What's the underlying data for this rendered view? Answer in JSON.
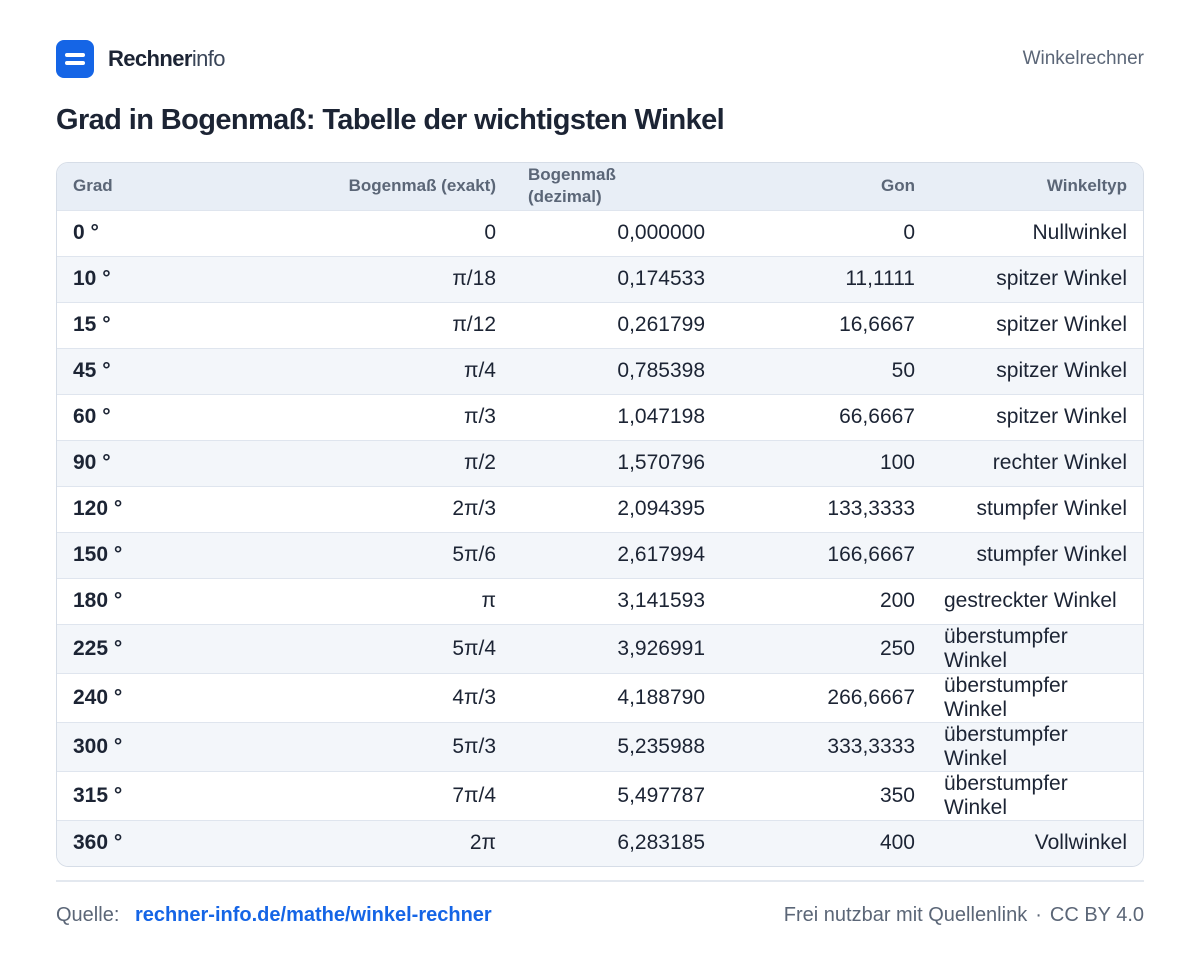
{
  "header": {
    "brand_strong": "Rechner",
    "brand_light": "info",
    "section": "Winkelrechner"
  },
  "title": "Grad in Bogenmaß: Tabelle der wichtigsten Winkel",
  "table": {
    "headers": {
      "grad": "Grad",
      "exakt": "Bogenmaß (exakt)",
      "dezimal_line1": "Bogenmaß",
      "dezimal_line2": "(dezimal)",
      "gon": "Gon",
      "typ": "Winkeltyp"
    },
    "rows": [
      {
        "grad": "0 °",
        "exakt": "0",
        "dezimal": "0,000000",
        "gon": "0",
        "typ": "Nullwinkel"
      },
      {
        "grad": "10 °",
        "exakt": "π/18",
        "dezimal": "0,174533",
        "gon": "11,1111",
        "typ": "spitzer Winkel"
      },
      {
        "grad": "15 °",
        "exakt": "π/12",
        "dezimal": "0,261799",
        "gon": "16,6667",
        "typ": "spitzer Winkel"
      },
      {
        "grad": "45 °",
        "exakt": "π/4",
        "dezimal": "0,785398",
        "gon": "50",
        "typ": "spitzer Winkel"
      },
      {
        "grad": "60 °",
        "exakt": "π/3",
        "dezimal": "1,047198",
        "gon": "66,6667",
        "typ": "spitzer Winkel"
      },
      {
        "grad": "90 °",
        "exakt": "π/2",
        "dezimal": "1,570796",
        "gon": "100",
        "typ": "rechter Winkel"
      },
      {
        "grad": "120 °",
        "exakt": "2π/3",
        "dezimal": "2,094395",
        "gon": "133,3333",
        "typ": "stumpfer Winkel"
      },
      {
        "grad": "150 °",
        "exakt": "5π/6",
        "dezimal": "2,617994",
        "gon": "166,6667",
        "typ": "stumpfer Winkel"
      },
      {
        "grad": "180 °",
        "exakt": "π",
        "dezimal": "3,141593",
        "gon": "200",
        "typ": "gestreckter Winkel"
      },
      {
        "grad": "225 °",
        "exakt": "5π/4",
        "dezimal": "3,926991",
        "gon": "250",
        "typ": "überstumpfer Winkel"
      },
      {
        "grad": "240 °",
        "exakt": "4π/3",
        "dezimal": "4,188790",
        "gon": "266,6667",
        "typ": "überstumpfer Winkel"
      },
      {
        "grad": "300 °",
        "exakt": "5π/3",
        "dezimal": "5,235988",
        "gon": "333,3333",
        "typ": "überstumpfer Winkel"
      },
      {
        "grad": "315 °",
        "exakt": "7π/4",
        "dezimal": "5,497787",
        "gon": "350",
        "typ": "überstumpfer Winkel"
      },
      {
        "grad": "360 °",
        "exakt": "2π",
        "dezimal": "6,283185",
        "gon": "400",
        "typ": "Vollwinkel"
      }
    ]
  },
  "footer": {
    "source_label": "Quelle:",
    "source_link": "rechner-info.de/mathe/winkel-rechner",
    "license_text": "Frei nutzbar mit Quellenlink",
    "separator": "·",
    "license": "CC BY 4.0"
  },
  "colors": {
    "accent": "#1565e6",
    "header_bg": "#e8eef6",
    "stripe_bg": "#f3f6fa"
  }
}
